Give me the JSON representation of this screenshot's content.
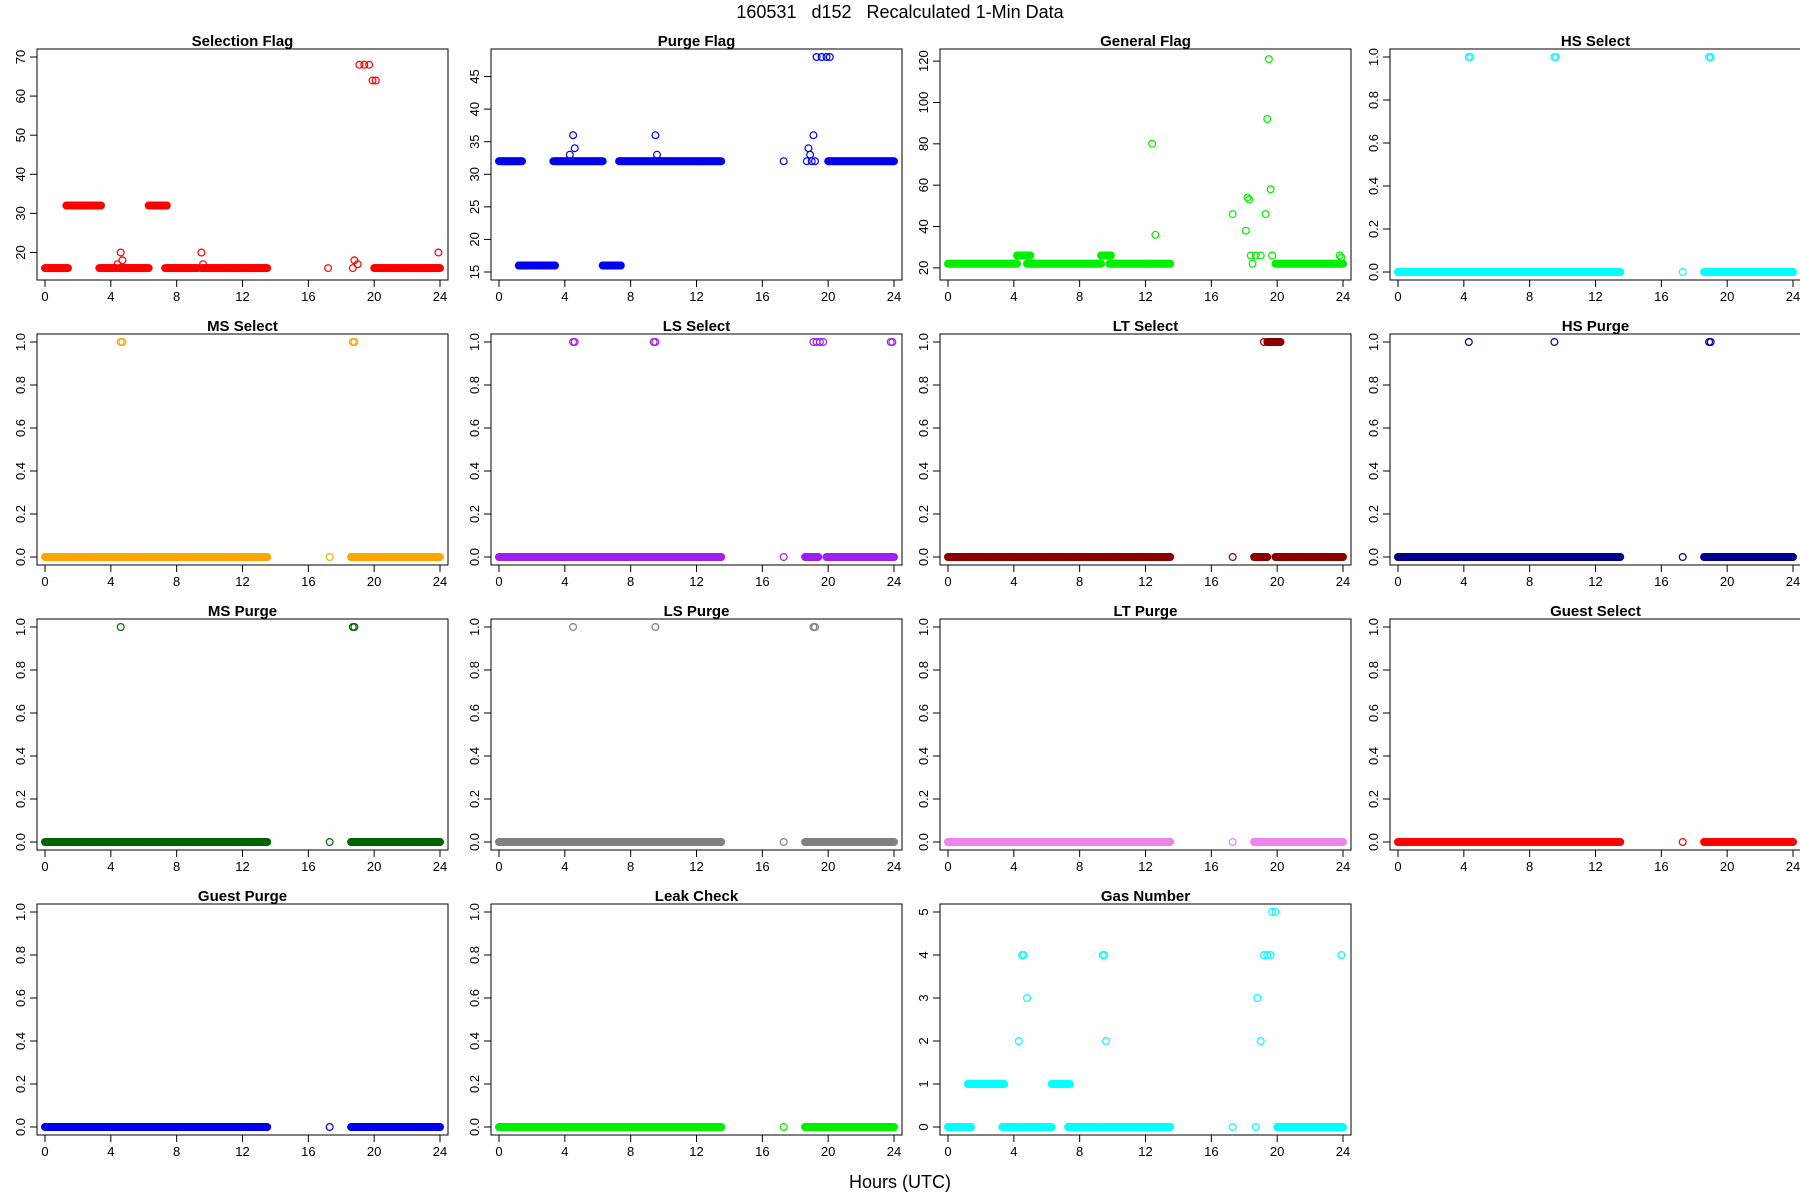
{
  "figure": {
    "title": "160531   d152   Recalculated 1-Min Data",
    "xlabel": "Hours (UTC)"
  },
  "chart_data": [
    {
      "type": "scatter",
      "title": "Selection Flag",
      "color": "#ff0000",
      "xlim": [
        0,
        24
      ],
      "ylim": [
        15,
        70
      ],
      "xticks": [
        0,
        4,
        8,
        12,
        16,
        20,
        24
      ],
      "yticks": [
        20,
        30,
        40,
        50,
        60,
        70
      ],
      "runs": [
        [
          0,
          1.4,
          16
        ],
        [
          1.3,
          3.4,
          32
        ],
        [
          3.3,
          4.3,
          16
        ],
        [
          4.5,
          6.3,
          16
        ],
        [
          6.3,
          7.4,
          32
        ],
        [
          7.3,
          9.3,
          16
        ],
        [
          9.5,
          12.2,
          16
        ],
        [
          12.2,
          13.5,
          16
        ],
        [
          20.0,
          24.0,
          16
        ]
      ],
      "points": [
        [
          4.3,
          16
        ],
        [
          4.4,
          17
        ],
        [
          4.6,
          20
        ],
        [
          4.7,
          18
        ],
        [
          9.5,
          20
        ],
        [
          9.6,
          17
        ],
        [
          17.2,
          16
        ],
        [
          18.7,
          16
        ],
        [
          18.8,
          18
        ],
        [
          19.0,
          17
        ],
        [
          19.1,
          68
        ],
        [
          19.4,
          68
        ],
        [
          19.7,
          68
        ],
        [
          19.9,
          64
        ],
        [
          20.1,
          64
        ],
        [
          23.9,
          20
        ]
      ]
    },
    {
      "type": "scatter",
      "title": "Purge Flag",
      "color": "#0000ee",
      "xlim": [
        0,
        24
      ],
      "ylim": [
        15,
        48
      ],
      "xticks": [
        0,
        4,
        8,
        12,
        16,
        20,
        24
      ],
      "yticks": [
        15,
        20,
        25,
        30,
        35,
        40,
        45
      ],
      "runs": [
        [
          0,
          1.4,
          32
        ],
        [
          1.2,
          3.4,
          16
        ],
        [
          3.3,
          6.3,
          32
        ],
        [
          6.3,
          7.4,
          16
        ],
        [
          7.3,
          12.2,
          32
        ],
        [
          12.2,
          13.5,
          32
        ],
        [
          20.0,
          24.0,
          32
        ]
      ],
      "points": [
        [
          4.3,
          33
        ],
        [
          4.5,
          36
        ],
        [
          4.6,
          34
        ],
        [
          9.5,
          36
        ],
        [
          9.6,
          33
        ],
        [
          17.3,
          32
        ],
        [
          18.7,
          32
        ],
        [
          18.8,
          34
        ],
        [
          18.9,
          33
        ],
        [
          19.0,
          32
        ],
        [
          19.1,
          36
        ],
        [
          19.2,
          32
        ],
        [
          19.3,
          48
        ],
        [
          19.6,
          48
        ],
        [
          19.9,
          48
        ],
        [
          20.1,
          48
        ]
      ]
    },
    {
      "type": "scatter",
      "title": "General Flag",
      "color": "#00ee00",
      "xlim": [
        0,
        24
      ],
      "ylim": [
        18,
        122
      ],
      "xticks": [
        0,
        4,
        8,
        12,
        16,
        20,
        24
      ],
      "yticks": [
        20,
        40,
        60,
        80,
        100,
        120
      ],
      "runs": [
        [
          0,
          4.2,
          22
        ],
        [
          4.2,
          5.0,
          26
        ],
        [
          4.8,
          9.3,
          22
        ],
        [
          9.3,
          9.9,
          26
        ],
        [
          9.8,
          12.2,
          22
        ],
        [
          12.2,
          13.5,
          22
        ],
        [
          19.9,
          24.0,
          22
        ]
      ],
      "points": [
        [
          12.4,
          80
        ],
        [
          12.6,
          36
        ],
        [
          17.3,
          46
        ],
        [
          18.1,
          38
        ],
        [
          18.2,
          54
        ],
        [
          18.3,
          53
        ],
        [
          18.4,
          26
        ],
        [
          18.5,
          22
        ],
        [
          18.7,
          26
        ],
        [
          19.0,
          26
        ],
        [
          19.3,
          46
        ],
        [
          19.4,
          92
        ],
        [
          19.5,
          121
        ],
        [
          19.6,
          58
        ],
        [
          19.7,
          26
        ],
        [
          23.8,
          26
        ],
        [
          23.9,
          25
        ]
      ]
    },
    {
      "type": "scatter",
      "title": "HS Select",
      "color": "#00ffff",
      "xlim": [
        0,
        24
      ],
      "ylim": [
        0,
        1
      ],
      "xticks": [
        0,
        4,
        8,
        12,
        16,
        20,
        24
      ],
      "yticks": [
        0.0,
        0.2,
        0.4,
        0.6,
        0.8,
        1.0
      ],
      "runs": [
        [
          0,
          12.2,
          0
        ],
        [
          12.2,
          13.5,
          0
        ],
        [
          18.6,
          24.0,
          0
        ]
      ],
      "points": [
        [
          4.3,
          1
        ],
        [
          4.4,
          1
        ],
        [
          9.5,
          1
        ],
        [
          9.6,
          1
        ],
        [
          17.3,
          0
        ],
        [
          18.9,
          1
        ],
        [
          19.0,
          1
        ]
      ]
    },
    {
      "type": "scatter",
      "title": "MS Select",
      "color": "#ffa500",
      "xlim": [
        0,
        24
      ],
      "ylim": [
        0,
        1
      ],
      "xticks": [
        0,
        4,
        8,
        12,
        16,
        20,
        24
      ],
      "yticks": [
        0.0,
        0.2,
        0.4,
        0.6,
        0.8,
        1.0
      ],
      "runs": [
        [
          0,
          12.2,
          0
        ],
        [
          12.2,
          13.5,
          0
        ],
        [
          18.6,
          24.0,
          0
        ]
      ],
      "points": [
        [
          4.6,
          1
        ],
        [
          4.7,
          1
        ],
        [
          17.3,
          0
        ],
        [
          18.7,
          1
        ],
        [
          18.8,
          1
        ]
      ]
    },
    {
      "type": "scatter",
      "title": "LS Select",
      "color": "#a020f0",
      "xlim": [
        0,
        24
      ],
      "ylim": [
        0,
        1
      ],
      "xticks": [
        0,
        4,
        8,
        12,
        16,
        20,
        24
      ],
      "yticks": [
        0.0,
        0.2,
        0.4,
        0.6,
        0.8,
        1.0
      ],
      "runs": [
        [
          0,
          12.2,
          0
        ],
        [
          12.2,
          13.5,
          0
        ],
        [
          18.6,
          19.4,
          0
        ],
        [
          19.9,
          24.0,
          0
        ]
      ],
      "points": [
        [
          4.5,
          1
        ],
        [
          4.6,
          1
        ],
        [
          9.4,
          1
        ],
        [
          9.5,
          1
        ],
        [
          17.3,
          0
        ],
        [
          19.1,
          1
        ],
        [
          19.3,
          1
        ],
        [
          19.5,
          1
        ],
        [
          19.7,
          1
        ],
        [
          23.8,
          1
        ],
        [
          23.9,
          1
        ]
      ]
    },
    {
      "type": "scatter",
      "title": "LT Select",
      "color": "#8b0000",
      "xlim": [
        0,
        24
      ],
      "ylim": [
        0,
        1
      ],
      "xticks": [
        0,
        4,
        8,
        12,
        16,
        20,
        24
      ],
      "yticks": [
        0.0,
        0.2,
        0.4,
        0.6,
        0.8,
        1.0
      ],
      "runs": [
        [
          0,
          12.2,
          0
        ],
        [
          12.2,
          13.5,
          0
        ],
        [
          18.6,
          19.4,
          0
        ],
        [
          19.4,
          20.2,
          1
        ],
        [
          19.9,
          24.0,
          0
        ]
      ],
      "points": [
        [
          17.3,
          0
        ],
        [
          19.2,
          1
        ]
      ]
    },
    {
      "type": "scatter",
      "title": "HS Purge",
      "color": "#00008b",
      "xlim": [
        0,
        24
      ],
      "ylim": [
        0,
        1
      ],
      "xticks": [
        0,
        4,
        8,
        12,
        16,
        20,
        24
      ],
      "yticks": [
        0.0,
        0.2,
        0.4,
        0.6,
        0.8,
        1.0
      ],
      "runs": [
        [
          0,
          12.2,
          0
        ],
        [
          12.2,
          13.5,
          0
        ],
        [
          18.6,
          24.0,
          0
        ]
      ],
      "points": [
        [
          4.3,
          1
        ],
        [
          9.5,
          1
        ],
        [
          17.3,
          0
        ],
        [
          18.9,
          1
        ],
        [
          19.0,
          1
        ]
      ]
    },
    {
      "type": "scatter",
      "title": "MS Purge",
      "color": "#006400",
      "xlim": [
        0,
        24
      ],
      "ylim": [
        0,
        1
      ],
      "xticks": [
        0,
        4,
        8,
        12,
        16,
        20,
        24
      ],
      "yticks": [
        0.0,
        0.2,
        0.4,
        0.6,
        0.8,
        1.0
      ],
      "runs": [
        [
          0,
          12.2,
          0
        ],
        [
          12.2,
          13.5,
          0
        ],
        [
          18.6,
          24.0,
          0
        ]
      ],
      "points": [
        [
          4.6,
          1
        ],
        [
          17.3,
          0
        ],
        [
          18.7,
          1
        ],
        [
          18.8,
          1
        ]
      ]
    },
    {
      "type": "scatter",
      "title": "LS Purge",
      "color": "#808080",
      "xlim": [
        0,
        24
      ],
      "ylim": [
        0,
        1
      ],
      "xticks": [
        0,
        4,
        8,
        12,
        16,
        20,
        24
      ],
      "yticks": [
        0.0,
        0.2,
        0.4,
        0.6,
        0.8,
        1.0
      ],
      "runs": [
        [
          0,
          12.2,
          0
        ],
        [
          12.2,
          13.5,
          0
        ],
        [
          18.6,
          24.0,
          0
        ]
      ],
      "points": [
        [
          4.5,
          1
        ],
        [
          9.5,
          1
        ],
        [
          17.3,
          0
        ],
        [
          19.1,
          1
        ],
        [
          19.2,
          1
        ]
      ]
    },
    {
      "type": "scatter",
      "title": "LT Purge",
      "color": "#ee82ee",
      "xlim": [
        0,
        24
      ],
      "ylim": [
        0,
        1
      ],
      "xticks": [
        0,
        4,
        8,
        12,
        16,
        20,
        24
      ],
      "yticks": [
        0.0,
        0.2,
        0.4,
        0.6,
        0.8,
        1.0
      ],
      "runs": [
        [
          0,
          12.2,
          0
        ],
        [
          12.2,
          13.5,
          0
        ],
        [
          18.6,
          24.0,
          0
        ]
      ],
      "points": [
        [
          17.3,
          0
        ]
      ]
    },
    {
      "type": "scatter",
      "title": "Guest Select",
      "color": "#ff0000",
      "xlim": [
        0,
        24
      ],
      "ylim": [
        0,
        1
      ],
      "xticks": [
        0,
        4,
        8,
        12,
        16,
        20,
        24
      ],
      "yticks": [
        0.0,
        0.2,
        0.4,
        0.6,
        0.8,
        1.0
      ],
      "runs": [
        [
          0,
          12.2,
          0
        ],
        [
          12.2,
          13.5,
          0
        ],
        [
          18.6,
          24.0,
          0
        ]
      ],
      "points": [
        [
          17.3,
          0
        ]
      ]
    },
    {
      "type": "scatter",
      "title": "Guest Purge",
      "color": "#0000ee",
      "xlim": [
        0,
        24
      ],
      "ylim": [
        0,
        1
      ],
      "xticks": [
        0,
        4,
        8,
        12,
        16,
        20,
        24
      ],
      "yticks": [
        0.0,
        0.2,
        0.4,
        0.6,
        0.8,
        1.0
      ],
      "runs": [
        [
          0,
          12.2,
          0
        ],
        [
          12.2,
          13.5,
          0
        ],
        [
          18.6,
          24.0,
          0
        ]
      ],
      "points": [
        [
          17.3,
          0
        ]
      ]
    },
    {
      "type": "scatter",
      "title": "Leak Check",
      "color": "#00ee00",
      "xlim": [
        0,
        24
      ],
      "ylim": [
        0,
        1
      ],
      "xticks": [
        0,
        4,
        8,
        12,
        16,
        20,
        24
      ],
      "yticks": [
        0.0,
        0.2,
        0.4,
        0.6,
        0.8,
        1.0
      ],
      "runs": [
        [
          0,
          12.2,
          0
        ],
        [
          12.2,
          13.5,
          0
        ],
        [
          18.6,
          24.0,
          0
        ]
      ],
      "points": [
        [
          17.3,
          0
        ]
      ]
    },
    {
      "type": "scatter",
      "title": "Gas Number",
      "color": "#00ffff",
      "xlim": [
        0,
        24
      ],
      "ylim": [
        0,
        5
      ],
      "xticks": [
        0,
        4,
        8,
        12,
        16,
        20,
        24
      ],
      "yticks": [
        0,
        1,
        2,
        3,
        4,
        5
      ],
      "runs": [
        [
          0,
          1.4,
          0
        ],
        [
          1.2,
          3.4,
          1
        ],
        [
          3.3,
          4.3,
          0
        ],
        [
          4.5,
          6.3,
          0
        ],
        [
          6.3,
          7.4,
          1
        ],
        [
          7.3,
          9.3,
          0
        ],
        [
          9.5,
          12.2,
          0
        ],
        [
          12.2,
          13.5,
          0
        ],
        [
          20.0,
          24.0,
          0
        ]
      ],
      "points": [
        [
          4.3,
          2
        ],
        [
          4.5,
          4
        ],
        [
          4.6,
          4
        ],
        [
          4.8,
          3
        ],
        [
          9.4,
          4
        ],
        [
          9.5,
          4
        ],
        [
          9.6,
          2
        ],
        [
          17.3,
          0
        ],
        [
          18.7,
          0
        ],
        [
          18.8,
          3
        ],
        [
          19.0,
          2
        ],
        [
          19.2,
          4
        ],
        [
          19.4,
          4
        ],
        [
          19.6,
          4
        ],
        [
          19.7,
          5
        ],
        [
          19.9,
          5
        ],
        [
          23.9,
          4
        ]
      ]
    }
  ]
}
